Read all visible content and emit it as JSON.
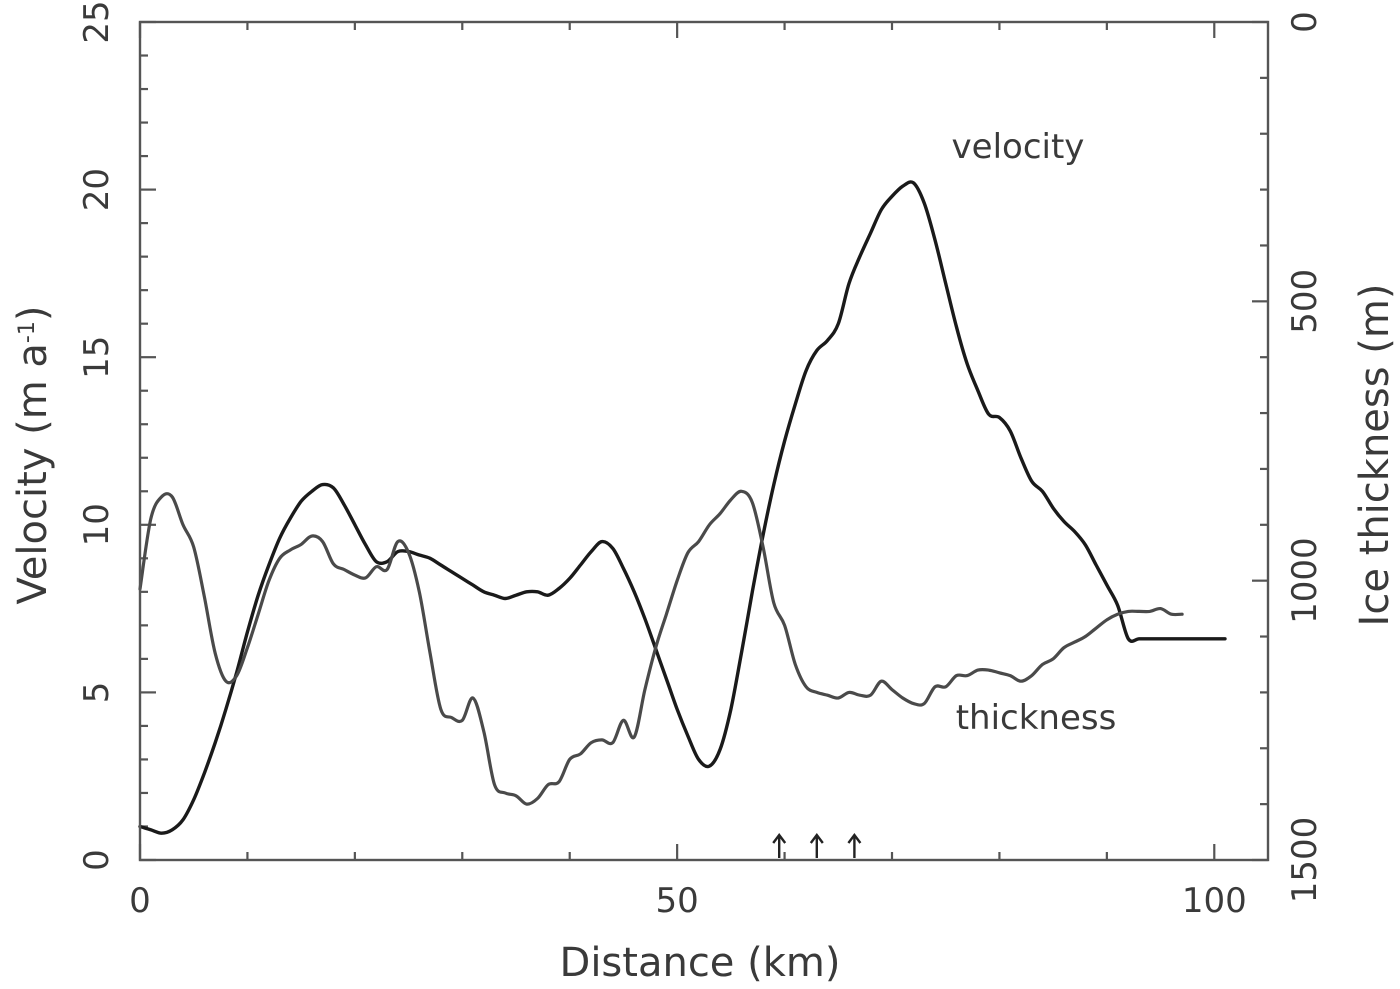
{
  "chart_data": {
    "type": "line",
    "xlabel": "Distance (km)",
    "ylabel_left": {
      "main": "Velocity (m a",
      "sup": "-1",
      "close": ")"
    },
    "ylabel_right": "Ice thickness (m)",
    "xlim": [
      0,
      105
    ],
    "ylim_left": [
      0,
      25
    ],
    "ylim_right_inverted": [
      0,
      1500
    ],
    "x_ticks": [
      0,
      50,
      100
    ],
    "x_tick_labels": [
      "0",
      "50",
      "100"
    ],
    "y_left_ticks": [
      0,
      5,
      10,
      15,
      20,
      25
    ],
    "y_left_tick_labels": [
      "0",
      "5",
      "10",
      "15",
      "20",
      "25"
    ],
    "y_right_ticks": [
      0,
      500,
      1000,
      1500
    ],
    "y_right_tick_labels": [
      "0",
      "500",
      "1000",
      "1500"
    ],
    "grid": false,
    "annotations": [
      {
        "text": "velocity",
        "series": "velocity"
      },
      {
        "text": "thickness",
        "series": "thickness"
      }
    ],
    "markers": [
      {
        "type": "arrow",
        "x": 59.5
      },
      {
        "type": "arrow",
        "x": 63
      },
      {
        "type": "arrow",
        "x": 66.5
      }
    ],
    "series": [
      {
        "name": "velocity",
        "axis": "left",
        "x": [
          0,
          1,
          2,
          3,
          4,
          5,
          6,
          7,
          8,
          9,
          10,
          11,
          12,
          13,
          14,
          15,
          16,
          17,
          18,
          19,
          20,
          21,
          22,
          23,
          24,
          25,
          26,
          27,
          28,
          29,
          30,
          31,
          32,
          33,
          34,
          35,
          36,
          37,
          38,
          39,
          40,
          41,
          42,
          43,
          44,
          45,
          46,
          47,
          48,
          49,
          50,
          51,
          52,
          53,
          54,
          55,
          56,
          57,
          58,
          59,
          60,
          61,
          62,
          63,
          64,
          65,
          66,
          67,
          68,
          69,
          70,
          71,
          72,
          73,
          74,
          75,
          76,
          77,
          78,
          79,
          80,
          81,
          82,
          83,
          84,
          85,
          86,
          87,
          88,
          89,
          90,
          91,
          92,
          93,
          94,
          95,
          96,
          97,
          98,
          99,
          100,
          101
        ],
        "values": [
          1.0,
          0.9,
          0.8,
          0.9,
          1.2,
          1.8,
          2.6,
          3.5,
          4.5,
          5.6,
          6.8,
          7.9,
          8.8,
          9.6,
          10.2,
          10.7,
          11.0,
          11.2,
          11.1,
          10.6,
          10.0,
          9.4,
          8.9,
          8.9,
          9.2,
          9.2,
          9.1,
          9.0,
          8.8,
          8.6,
          8.4,
          8.2,
          8.0,
          7.9,
          7.8,
          7.9,
          8.0,
          8.0,
          7.9,
          8.1,
          8.4,
          8.8,
          9.2,
          9.5,
          9.3,
          8.7,
          8.0,
          7.2,
          6.3,
          5.4,
          4.5,
          3.7,
          3.0,
          2.8,
          3.3,
          4.5,
          6.2,
          8.0,
          9.7,
          11.2,
          12.5,
          13.6,
          14.6,
          15.2,
          15.5,
          16.0,
          17.2,
          18.0,
          18.7,
          19.4,
          19.8,
          20.1,
          20.2,
          19.6,
          18.5,
          17.2,
          15.9,
          14.8,
          14.0,
          13.3,
          13.2,
          12.8,
          12.0,
          11.3,
          11.0,
          10.5,
          10.1,
          9.8,
          9.4,
          8.8,
          8.2,
          7.6,
          6.6,
          6.6,
          6.6,
          6.6,
          6.6,
          6.6,
          6.6,
          6.6,
          6.6,
          6.6
        ]
      },
      {
        "name": "thickness",
        "axis": "right",
        "x": [
          0,
          1,
          2,
          3,
          4,
          5,
          6,
          7,
          8,
          9,
          10,
          11,
          12,
          13,
          14,
          15,
          16,
          17,
          18,
          19,
          20,
          21,
          22,
          23,
          24,
          25,
          26,
          27,
          28,
          29,
          30,
          31,
          32,
          33,
          34,
          35,
          36,
          37,
          38,
          39,
          40,
          41,
          42,
          43,
          44,
          45,
          46,
          47,
          48,
          49,
          50,
          51,
          52,
          53,
          54,
          55,
          56,
          57,
          58,
          59,
          60,
          61,
          62,
          63,
          64,
          65,
          66,
          67,
          68,
          69,
          70,
          71,
          72,
          73,
          74,
          75,
          76,
          77,
          78,
          79,
          80,
          81,
          82,
          83,
          84,
          85,
          86,
          87,
          88,
          89,
          90,
          91,
          92,
          93,
          94,
          95,
          96,
          97
        ],
        "values": [
          1015,
          890,
          850,
          850,
          900,
          940,
          1030,
          1130,
          1180,
          1170,
          1120,
          1060,
          1000,
          960,
          945,
          935,
          920,
          930,
          970,
          980,
          990,
          995,
          975,
          980,
          930,
          950,
          1020,
          1130,
          1230,
          1245,
          1250,
          1210,
          1270,
          1365,
          1380,
          1385,
          1400,
          1390,
          1365,
          1360,
          1320,
          1310,
          1290,
          1285,
          1290,
          1250,
          1280,
          1195,
          1120,
          1060,
          1000,
          950,
          930,
          900,
          880,
          855,
          840,
          860,
          940,
          1040,
          1080,
          1150,
          1190,
          1200,
          1205,
          1210,
          1200,
          1205,
          1205,
          1180,
          1195,
          1210,
          1220,
          1220,
          1190,
          1190,
          1170,
          1170,
          1160,
          1160,
          1165,
          1170,
          1180,
          1170,
          1150,
          1140,
          1120,
          1110,
          1100,
          1085,
          1070,
          1060,
          1055,
          1055,
          1055,
          1050,
          1060,
          1060
        ]
      }
    ]
  }
}
